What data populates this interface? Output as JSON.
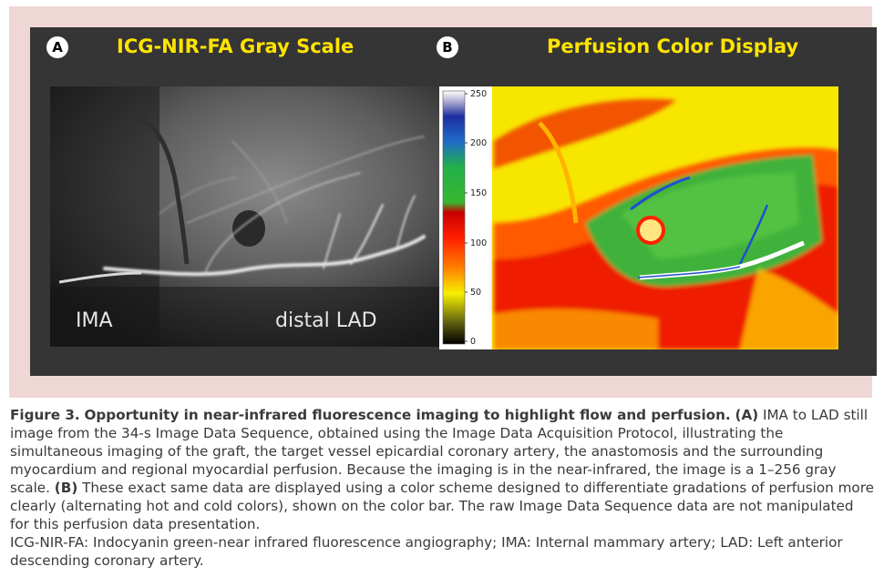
{
  "figure": {
    "panel_a": {
      "letter": "A",
      "title": "ICG-NIR-FA Gray Scale",
      "label_left": "IMA",
      "label_right": "distal LAD"
    },
    "panel_b": {
      "letter": "B",
      "title": "Perfusion Color Display",
      "colorbar_ticks": [
        "250",
        "200",
        "150",
        "100",
        "50",
        "0"
      ]
    },
    "title_color": "#ffe400"
  },
  "caption": {
    "label": "Figure 3.",
    "title": "Opportunity in near-infrared fluorescence imaging to highlight flow and perfusion.",
    "a_marker": "(A)",
    "a_text": "IMA to LAD still image from the 34-s Image Data Sequence, obtained using the Image Data Acquisition Protocol, illustrating the simultaneous imaging of the graft, the target vessel epicardial coronary artery, the anastomosis and the surrounding myocardium and regional myocardial perfusion. Because the imaging is in the near-infrared, the image is a 1–256 gray scale.",
    "b_marker": "(B)",
    "b_text": "These exact same data are displayed using a color scheme designed to differentiate gradations of perfusion more clearly (alternating hot and cold colors), shown on the color bar. The raw Image Data Sequence data are not manipulated for this perfusion data presentation.",
    "abbreviations": "ICG-NIR-FA: Indocyanin green-near infrared fluorescence angiography; IMA: Internal mammary artery; LAD: Left anterior descending coronary artery."
  }
}
